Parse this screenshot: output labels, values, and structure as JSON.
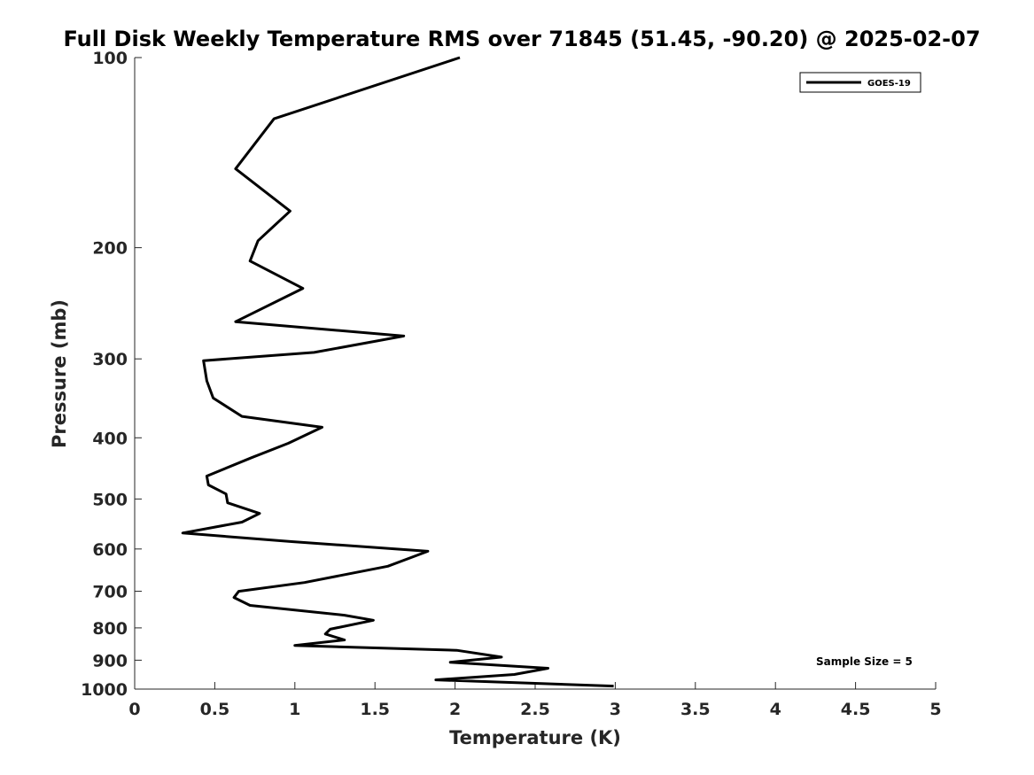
{
  "chart_data": {
    "type": "line",
    "title": "Full Disk Weekly Temperature RMS over 71845 (51.45, -90.20) @ 2025-02-07",
    "xlabel": "Temperature (K)",
    "ylabel": "Pressure (mb)",
    "xlim": [
      0,
      5
    ],
    "ylim": [
      100,
      1000
    ],
    "y_scale": "log",
    "y_reversed": true,
    "x_ticks": [
      "0",
      "0.5",
      "1",
      "1.5",
      "2",
      "2.5",
      "3",
      "3.5",
      "4",
      "4.5",
      "5"
    ],
    "y_ticks": [
      "100",
      "200",
      "300",
      "400",
      "500",
      "600",
      "700",
      "800",
      "900",
      "1000"
    ],
    "grid": false,
    "legend_position": "top-right",
    "series": [
      {
        "name": "GOES-19",
        "color": "#000000",
        "points": [
          [
            2.03,
            100
          ],
          [
            0.87,
            125
          ],
          [
            0.63,
            150
          ],
          [
            0.97,
            175
          ],
          [
            0.77,
            195
          ],
          [
            0.72,
            210
          ],
          [
            1.05,
            232
          ],
          [
            0.63,
            262
          ],
          [
            1.68,
            276
          ],
          [
            1.12,
            293
          ],
          [
            0.43,
            302
          ],
          [
            0.45,
            325
          ],
          [
            0.49,
            346
          ],
          [
            0.67,
            370
          ],
          [
            1.17,
            385
          ],
          [
            0.96,
            408
          ],
          [
            0.73,
            430
          ],
          [
            0.45,
            460
          ],
          [
            0.46,
            475
          ],
          [
            0.57,
            491
          ],
          [
            0.58,
            507
          ],
          [
            0.78,
            527
          ],
          [
            0.67,
            544
          ],
          [
            0.3,
            566
          ],
          [
            0.98,
            584
          ],
          [
            1.83,
            605
          ],
          [
            1.58,
            639
          ],
          [
            1.06,
            678
          ],
          [
            0.65,
            700
          ],
          [
            0.62,
            716
          ],
          [
            0.72,
            737
          ],
          [
            1.31,
            764
          ],
          [
            1.49,
            778
          ],
          [
            1.22,
            804
          ],
          [
            1.19,
            818
          ],
          [
            1.31,
            836
          ],
          [
            1.0,
            853
          ],
          [
            2.01,
            868
          ],
          [
            2.29,
            890
          ],
          [
            1.97,
            907
          ],
          [
            2.58,
            927
          ],
          [
            2.37,
            948
          ],
          [
            1.88,
            967
          ],
          [
            2.99,
            989
          ]
        ]
      }
    ],
    "annotations": [
      "Sample Size = 5"
    ]
  }
}
